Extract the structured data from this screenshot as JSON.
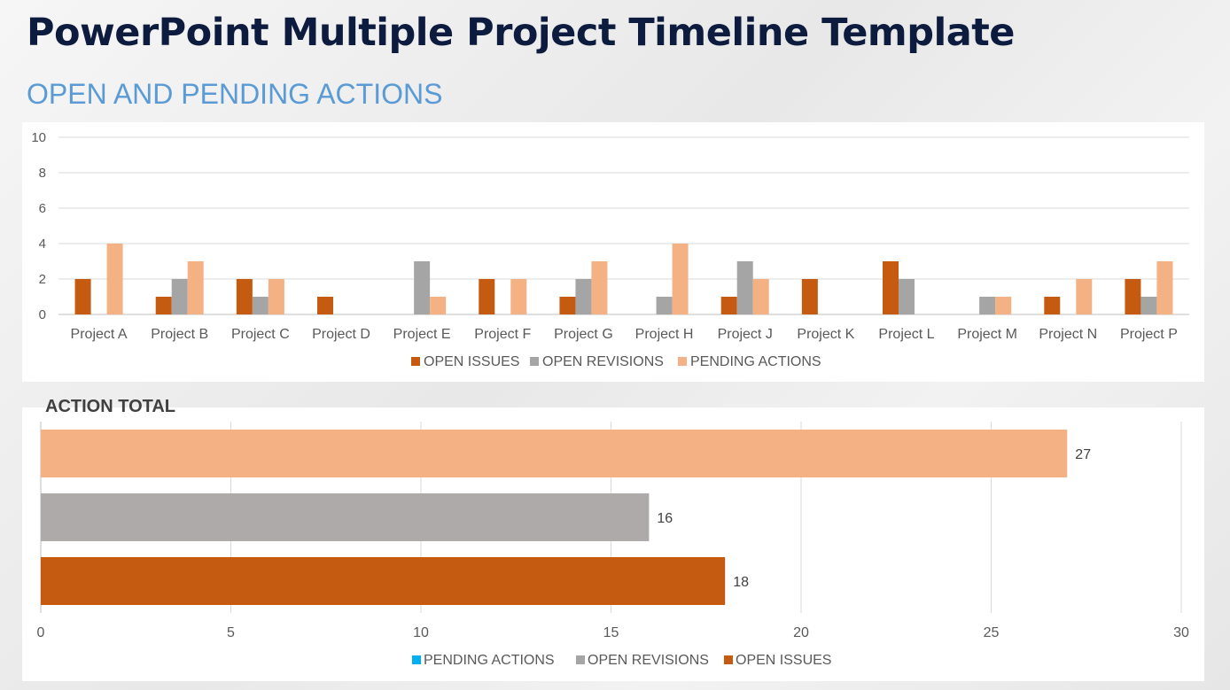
{
  "page": {
    "title": "PowerPoint Multiple Project Timeline Template",
    "subtitle": "OPEN AND PENDING ACTIONS",
    "total_title": "ACTION TOTAL"
  },
  "chart_data": [
    {
      "type": "bar",
      "title": "",
      "categories": [
        "Project A",
        "Project B",
        "Project C",
        "Project D",
        "Project E",
        "Project F",
        "Project G",
        "Project H",
        "Project J",
        "Project K",
        "Project L",
        "Project M",
        "Project N",
        "Project P"
      ],
      "series": [
        {
          "name": "OPEN ISSUES",
          "color": "#c55a11",
          "values": [
            2,
            1,
            2,
            1,
            0,
            2,
            1,
            0,
            1,
            2,
            3,
            0,
            1,
            2
          ]
        },
        {
          "name": "OPEN REVISIONS",
          "color": "#a5a5a5",
          "values": [
            0,
            2,
            1,
            0,
            3,
            0,
            2,
            1,
            3,
            0,
            2,
            1,
            0,
            1
          ]
        },
        {
          "name": "PENDING ACTIONS",
          "color": "#f4b183",
          "values": [
            4,
            3,
            2,
            0,
            1,
            2,
            3,
            4,
            2,
            0,
            0,
            1,
            2,
            3
          ]
        }
      ],
      "yticks": [
        "0",
        "2",
        "4",
        "6",
        "8",
        "10"
      ],
      "ylim": [
        0,
        10
      ],
      "grid": true,
      "legend": "bottom"
    },
    {
      "type": "bar",
      "orientation": "horizontal",
      "title": "ACTION TOTAL",
      "bars": [
        {
          "name": "PENDING ACTIONS",
          "value": 27,
          "label": "27",
          "color": "#f4b183"
        },
        {
          "name": "OPEN REVISIONS",
          "value": 16,
          "label": "16",
          "color": "#aeaaaa"
        },
        {
          "name": "OPEN ISSUES",
          "value": 18,
          "label": "18",
          "color": "#c55a11"
        }
      ],
      "xticks": [
        "0",
        "5",
        "10",
        "15",
        "20",
        "25",
        "30"
      ],
      "xlim": [
        0,
        30
      ],
      "grid": true,
      "legend": "bottom",
      "legend_items": [
        {
          "name": "PENDING ACTIONS",
          "color": "#00b0f0"
        },
        {
          "name": "OPEN REVISIONS",
          "color": "#a5a5a5"
        },
        {
          "name": "OPEN ISSUES",
          "color": "#c55a11"
        }
      ]
    }
  ]
}
